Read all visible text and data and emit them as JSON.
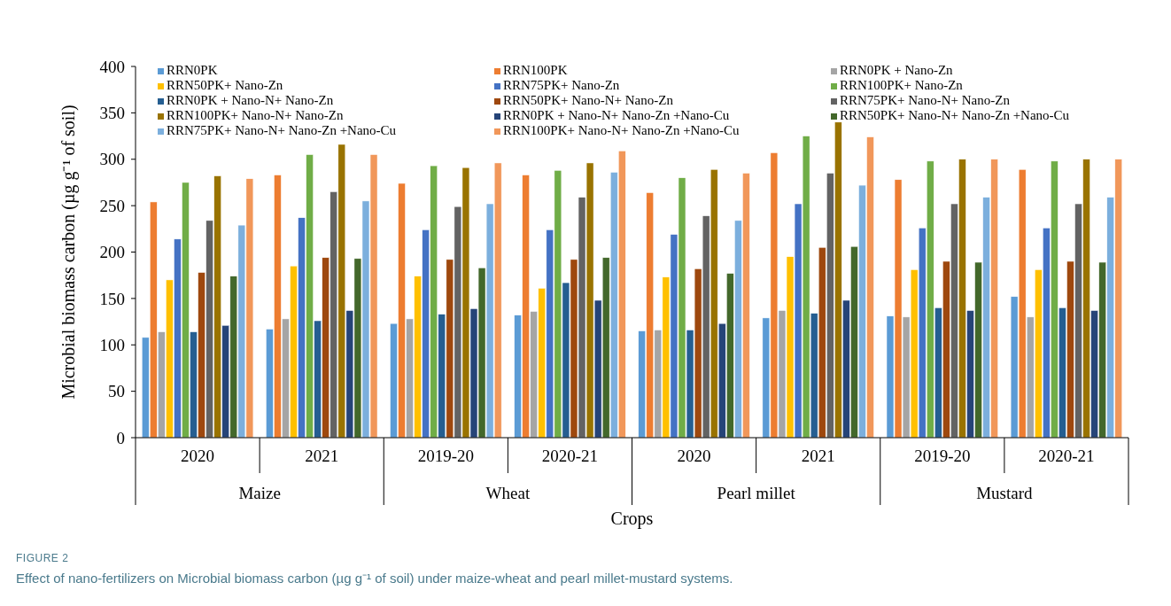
{
  "chart_data": {
    "type": "bar",
    "title": "FIGURE 2",
    "subtitle": "Effect of nano-fertilizers on Microbial biomass carbon (µg g⁻¹ of soil) under maize-wheat and pearl millet-mustard systems.",
    "xlabel": "Crops",
    "ylabel": "Microbial biomass carbon (µg g⁻¹ of soil)",
    "categories": [
      "2020",
      "2021",
      "2019-20",
      "2020-21",
      "2020",
      "2021",
      "2019-20",
      "2020-21"
    ],
    "annotations": [
      "Maize",
      "Wheat",
      "Pearl millet",
      "Mustard"
    ],
    "ylim": [
      0,
      400
    ],
    "yticks": [
      0,
      50,
      100,
      150,
      200,
      250,
      300,
      350,
      400
    ],
    "grid": false,
    "legend": "top",
    "series": [
      {
        "name": "RRN0PK",
        "color": "#5b9bd5",
        "values": [
          108,
          117,
          123,
          132,
          115,
          129,
          131,
          152
        ]
      },
      {
        "name": "RRN100PK",
        "color": "#ed7d31",
        "values": [
          254,
          283,
          274,
          283,
          264,
          307,
          278,
          289
        ]
      },
      {
        "name": "RRN0PK + Nano-Zn",
        "color": "#a5a5a5",
        "values": [
          114,
          128,
          128,
          136,
          116,
          137,
          130,
          130
        ]
      },
      {
        "name": "RRN50PK+ Nano-Zn",
        "color": "#ffc000",
        "values": [
          170,
          185,
          174,
          161,
          173,
          195,
          181,
          181
        ]
      },
      {
        "name": "RRN75PK+ Nano-Zn",
        "color": "#4472c4",
        "values": [
          214,
          237,
          224,
          224,
          219,
          252,
          226,
          226
        ]
      },
      {
        "name": "RRN100PK+ Nano-Zn",
        "color": "#70ad47",
        "values": [
          275,
          305,
          293,
          288,
          280,
          325,
          298,
          298
        ]
      },
      {
        "name": "RRN0PK + Nano-N+ Nano-Zn",
        "color": "#255e91",
        "values": [
          114,
          126,
          133,
          167,
          116,
          134,
          140,
          140
        ]
      },
      {
        "name": "RRN50PK+ Nano-N+ Nano-Zn",
        "color": "#9e480e",
        "values": [
          178,
          194,
          192,
          192,
          182,
          205,
          190,
          190
        ]
      },
      {
        "name": "RRN75PK+ Nano-N+ Nano-Zn",
        "color": "#636363",
        "values": [
          234,
          265,
          249,
          259,
          239,
          285,
          252,
          252
        ]
      },
      {
        "name": "RRN100PK+ Nano-N+ Nano-Zn",
        "color": "#997300",
        "values": [
          282,
          316,
          291,
          296,
          289,
          340,
          300,
          300
        ]
      },
      {
        "name": "RRN0PK + Nano-N+ Nano-Zn +Nano-Cu",
        "color": "#264478",
        "values": [
          121,
          137,
          139,
          148,
          123,
          148,
          137,
          137
        ]
      },
      {
        "name": "RRN50PK+ Nano-N+ Nano-Zn +Nano-Cu",
        "color": "#43682b",
        "values": [
          174,
          193,
          183,
          194,
          177,
          206,
          189,
          189
        ]
      },
      {
        "name": "RRN75PK+ Nano-N+ Nano-Zn +Nano-Cu",
        "color": "#7cafdd",
        "values": [
          229,
          255,
          252,
          286,
          234,
          272,
          259,
          259
        ]
      },
      {
        "name": "RRN100PK+ Nano-N+ Nano-Zn +Nano-Cu",
        "color": "#f1975a",
        "values": [
          279,
          305,
          296,
          309,
          285,
          324,
          300,
          300
        ]
      }
    ]
  }
}
